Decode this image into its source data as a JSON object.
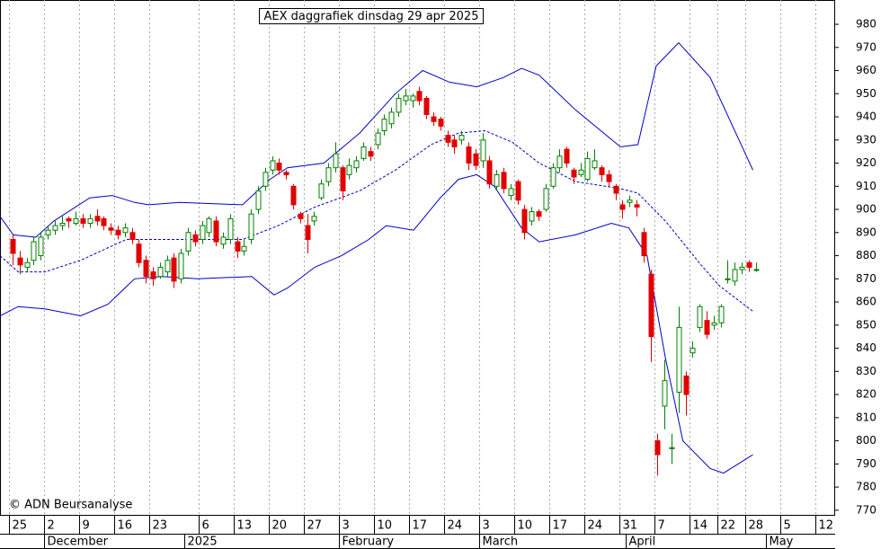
{
  "chart_data": {
    "type": "candlestick",
    "title": "AEX daggrafiek dinsdag 29 apr 2025",
    "credit": "© ADN Beursanalyse",
    "up_color": "#008000",
    "down_color": "#e00000",
    "xlim": [
      -1.8,
      117.2
    ],
    "ylim": [
      767.6,
      990.5
    ],
    "yticks": [
      770,
      780,
      790,
      800,
      810,
      820,
      830,
      840,
      850,
      860,
      870,
      880,
      890,
      900,
      910,
      920,
      930,
      940,
      950,
      960,
      970,
      980
    ],
    "xticks": [
      {
        "value": 0,
        "label": "25"
      },
      {
        "value": 5,
        "label": "2"
      },
      {
        "value": 10,
        "label": "9"
      },
      {
        "value": 15,
        "label": "16"
      },
      {
        "value": 20,
        "label": "23"
      },
      {
        "value": 27,
        "label": "6"
      },
      {
        "value": 32,
        "label": "13"
      },
      {
        "value": 37,
        "label": "20"
      },
      {
        "value": 42,
        "label": "27"
      },
      {
        "value": 47,
        "label": "3"
      },
      {
        "value": 52,
        "label": "10"
      },
      {
        "value": 57,
        "label": "17"
      },
      {
        "value": 62,
        "label": "24"
      },
      {
        "value": 67,
        "label": "3"
      },
      {
        "value": 72,
        "label": "10"
      },
      {
        "value": 77,
        "label": "17"
      },
      {
        "value": 82,
        "label": "24"
      },
      {
        "value": 87,
        "label": "31"
      },
      {
        "value": 92,
        "label": "7"
      },
      {
        "value": 97,
        "label": "14"
      },
      {
        "value": 101,
        "label": "22"
      },
      {
        "value": 105,
        "label": "28"
      },
      {
        "value": 110,
        "label": "5"
      },
      {
        "value": 115,
        "label": "12"
      }
    ],
    "month_ticks": [
      {
        "value": 5,
        "label": "December"
      },
      {
        "value": 25,
        "label": "2025"
      },
      {
        "value": 47,
        "label": "February"
      },
      {
        "value": 67,
        "label": "March"
      },
      {
        "value": 88,
        "label": "April"
      },
      {
        "value": 108,
        "label": "May"
      }
    ],
    "grid": true,
    "x": [
      0,
      1,
      2,
      3,
      4,
      5,
      6,
      7,
      8,
      9,
      10,
      11,
      12,
      13,
      14,
      15,
      16,
      17,
      18,
      19,
      20,
      21,
      22,
      23,
      24,
      25,
      26,
      27,
      28,
      29,
      30,
      31,
      32,
      33,
      34,
      35,
      36,
      37,
      38,
      39,
      40,
      41,
      42,
      43,
      44,
      45,
      46,
      47,
      48,
      49,
      50,
      51,
      52,
      53,
      54,
      55,
      56,
      57,
      58,
      59,
      60,
      61,
      62,
      63,
      64,
      65,
      66,
      67,
      68,
      69,
      70,
      71,
      72,
      73,
      74,
      75,
      76,
      77,
      78,
      79,
      80,
      81,
      82,
      83,
      84,
      85,
      86,
      87,
      88,
      89,
      90,
      91,
      92,
      93,
      94,
      95,
      96,
      97,
      98,
      99,
      100,
      101,
      102,
      103,
      104,
      105,
      106
    ],
    "open": [
      887,
      879,
      875,
      878,
      880,
      889,
      891,
      893,
      896,
      894,
      896,
      894,
      897,
      896,
      892,
      891,
      890,
      890,
      885,
      878,
      873,
      871,
      873,
      879,
      870,
      882,
      889,
      887,
      890,
      895,
      885,
      887,
      886,
      882,
      887,
      900,
      910,
      917,
      920,
      916,
      910,
      898,
      893,
      895,
      905,
      912,
      918,
      918,
      915,
      918,
      922,
      925,
      928,
      934,
      937,
      942,
      947,
      947,
      951,
      948,
      940,
      939,
      932,
      930,
      930,
      927,
      924,
      921,
      921,
      910,
      916,
      906,
      912,
      900,
      895,
      899,
      900,
      910,
      918,
      926,
      917,
      915,
      913,
      918,
      918,
      915,
      910,
      902,
      903,
      902,
      890,
      872,
      800,
      815,
      797,
      821,
      828,
      838,
      849,
      852,
      850,
      851,
      870,
      869,
      874,
      877,
      874
    ],
    "high": [
      889,
      882,
      879,
      888,
      890,
      893,
      895,
      897,
      897,
      899,
      898,
      898,
      900,
      897,
      894,
      893,
      894,
      892,
      887,
      880,
      875,
      877,
      880,
      881,
      883,
      892,
      891,
      895,
      897,
      897,
      890,
      898,
      888,
      887,
      900,
      910,
      918,
      923,
      922,
      917,
      911,
      899,
      898,
      899,
      913,
      920,
      929,
      919,
      922,
      923,
      929,
      927,
      935,
      941,
      944,
      950,
      952,
      950,
      953,
      949,
      942,
      940,
      934,
      932,
      934,
      929,
      926,
      933,
      923,
      917,
      918,
      911,
      913,
      902,
      901,
      900,
      911,
      920,
      926,
      927,
      918,
      920,
      925,
      926,
      919,
      917,
      911,
      904,
      906,
      904,
      892,
      874,
      803,
      835,
      803,
      858,
      830,
      843,
      859,
      856,
      854,
      859,
      878,
      877,
      877,
      878,
      877
    ],
    "low": [
      876,
      872,
      873,
      876,
      878,
      887,
      889,
      891,
      892,
      893,
      892,
      892,
      893,
      891,
      889,
      887,
      888,
      885,
      875,
      868,
      867,
      870,
      871,
      866,
      868,
      880,
      884,
      885,
      888,
      884,
      883,
      885,
      879,
      880,
      885,
      898,
      908,
      915,
      915,
      913,
      900,
      894,
      881,
      893,
      904,
      910,
      916,
      904,
      913,
      916,
      921,
      921,
      926,
      932,
      935,
      940,
      945,
      944,
      945,
      939,
      936,
      934,
      927,
      924,
      928,
      917,
      917,
      918,
      909,
      908,
      907,
      904,
      902,
      887,
      893,
      895,
      899,
      909,
      916,
      918,
      911,
      914,
      912,
      917,
      912,
      910,
      904,
      896,
      901,
      897,
      877,
      834,
      785,
      805,
      790,
      812,
      811,
      836,
      847,
      844,
      848,
      849,
      868,
      867,
      872,
      873,
      873
    ],
    "close": [
      881,
      876,
      877,
      886,
      888,
      891,
      893,
      894,
      895,
      896,
      894,
      896,
      895,
      893,
      891,
      889,
      892,
      887,
      877,
      871,
      870,
      875,
      878,
      869,
      881,
      890,
      886,
      893,
      896,
      886,
      888,
      896,
      882,
      884,
      898,
      908,
      916,
      921,
      917,
      915,
      902,
      896,
      887,
      897,
      911,
      918,
      924,
      908,
      919,
      921,
      927,
      923,
      933,
      939,
      942,
      948,
      949,
      949,
      947,
      941,
      938,
      936,
      929,
      927,
      932,
      920,
      919,
      930,
      911,
      915,
      909,
      909,
      904,
      890,
      899,
      897,
      909,
      918,
      923,
      920,
      914,
      917,
      922,
      921,
      915,
      912,
      907,
      900,
      904,
      901,
      880,
      845,
      794,
      826,
      797,
      849,
      820,
      840,
      858,
      846,
      851,
      858,
      870,
      874,
      875,
      875,
      874
    ],
    "bands": [
      {
        "color": "#0000c8",
        "line_style": "solid",
        "x": [
          -1.8,
          0.1,
          3.3,
          5.9,
          11,
          14.2,
          17.4,
          19.4,
          23.8,
          32.8,
          36.7,
          39.2,
          44.4,
          49.5,
          54.6,
          58.5,
          62.3,
          66.2,
          70,
          72.6,
          75.1,
          80.3,
          86.7,
          89.2,
          91.8,
          95,
          99.5,
          105.6
        ],
        "values": [
          897,
          889,
          888,
          895,
          905,
          906,
          903,
          902,
          903,
          902,
          913,
          918,
          920,
          933,
          950,
          960,
          955,
          953,
          957,
          961,
          958,
          943,
          927,
          928,
          962,
          972,
          957,
          917
        ]
      },
      {
        "color": "#0000c8",
        "line_style": "dashed",
        "x": [
          -1.8,
          0.8,
          4.6,
          9.7,
          16.2,
          23.8,
          32.8,
          37.9,
          43.1,
          49.5,
          54.6,
          59.7,
          63.6,
          67.4,
          71.3,
          75.1,
          80.3,
          86.7,
          89.2,
          93.1,
          98.2,
          100.8,
          105.6
        ],
        "values": [
          880,
          873,
          873,
          878,
          887,
          887,
          887,
          893,
          901,
          908,
          917,
          928,
          933,
          934,
          929,
          920,
          912,
          909,
          907,
          895,
          876,
          867,
          856
        ]
      },
      {
        "color": "#0000c8",
        "line_style": "solid",
        "x": [
          -1.8,
          0.8,
          4.6,
          9.7,
          13.6,
          17.4,
          21.3,
          26.4,
          34.1,
          37.3,
          39.2,
          43.1,
          46.9,
          50.8,
          53.3,
          57.2,
          61,
          63.6,
          66.2,
          68.7,
          72.6,
          75.1,
          80.3,
          85.4,
          87.9,
          90.5,
          93.1,
          95.6,
          99.5,
          101.4,
          105.6
        ],
        "values": [
          854,
          858,
          857,
          854,
          859,
          870,
          871,
          870,
          871,
          863,
          866,
          875,
          880,
          887,
          893,
          891,
          905,
          913,
          915,
          910,
          892,
          886,
          889,
          894,
          892,
          880,
          836,
          800,
          788,
          786,
          794
        ]
      }
    ]
  }
}
